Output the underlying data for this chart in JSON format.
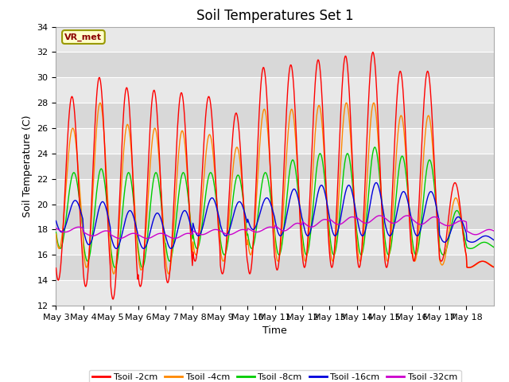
{
  "title": "Soil Temperatures Set 1",
  "xlabel": "Time",
  "ylabel": "Soil Temperature (C)",
  "ylim": [
    12,
    34
  ],
  "yticks": [
    12,
    14,
    16,
    18,
    20,
    22,
    24,
    26,
    28,
    30,
    32,
    34
  ],
  "x_labels": [
    "May 3",
    "May 4",
    "May 5",
    "May 6",
    "May 7",
    "May 8",
    "May 9",
    "May 10",
    "May 11",
    "May 12",
    "May 13",
    "May 14",
    "May 15",
    "May 16",
    "May 17",
    "May 18"
  ],
  "annotation_text": "VR_met",
  "series_colors": {
    "Tsoil -2cm": "#ff0000",
    "Tsoil -4cm": "#ff8800",
    "Tsoil -8cm": "#00cc00",
    "Tsoil -16cm": "#0000dd",
    "Tsoil -32cm": "#cc00cc"
  },
  "plot_bg_color": "#e8e8e8",
  "band_color_light": "#e8e8e8",
  "band_color_dark": "#d8d8d8",
  "grid_color": "#ffffff",
  "fig_bg_color": "#ffffff",
  "title_fontsize": 12,
  "tick_fontsize": 8,
  "label_fontsize": 9
}
